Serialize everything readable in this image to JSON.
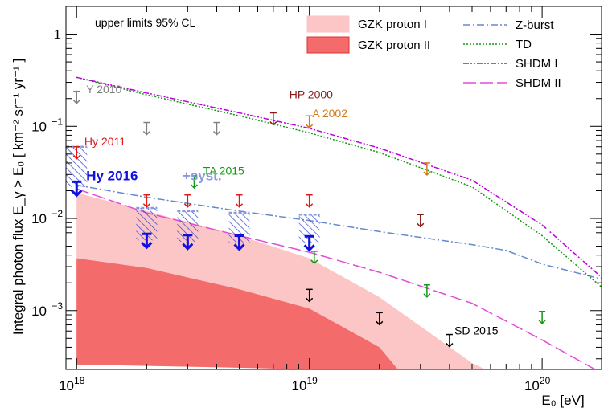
{
  "chart_data": {
    "type": "line",
    "title": "",
    "xlabel": "E₀ [eV]",
    "ylabel": "Integral photon flux E_γ > E₀ [ km⁻² sr⁻¹ yr⁻¹ ]",
    "x_scale": "log",
    "y_scale": "log",
    "xlim": [
      9e+17,
      1.8e+20
    ],
    "ylim": [
      0.00023,
      2.0
    ],
    "grid": false,
    "annotation": "upper limits 95% CL",
    "x_ticks": [
      {
        "value": 1e+18,
        "base": "10",
        "exp": "18"
      },
      {
        "value": 1e+19,
        "base": "10",
        "exp": "19"
      },
      {
        "value": 1e+20,
        "base": "10",
        "exp": "20"
      }
    ],
    "y_ticks": [
      {
        "value": 1,
        "label": "1"
      },
      {
        "value": 0.1,
        "base": "10",
        "exp": "−1"
      },
      {
        "value": 0.01,
        "base": "10",
        "exp": "−2"
      },
      {
        "value": 0.001,
        "base": "10",
        "exp": "−3"
      }
    ],
    "bands": [
      {
        "name": "GZK proton I",
        "color": "#fcc6c6",
        "upper": [
          [
            1e+18,
            0.019
          ],
          [
            2e+18,
            0.012
          ],
          [
            5e+18,
            0.0065
          ],
          [
            1e+19,
            0.0037
          ],
          [
            2e+19,
            0.0014
          ],
          [
            5e+19,
            0.00027
          ],
          [
            5.7e+19,
            0.00023
          ]
        ],
        "lower": [
          [
            1e+18,
            0.00026
          ],
          [
            5e+18,
            0.00024
          ],
          [
            1e+19,
            0.00023
          ]
        ]
      },
      {
        "name": "GZK proton II",
        "color": "#f36b6b",
        "upper": [
          [
            1e+18,
            0.0037
          ],
          [
            2e+18,
            0.0029
          ],
          [
            5e+18,
            0.0017
          ],
          [
            1e+19,
            0.00105
          ],
          [
            2e+19,
            0.0004
          ],
          [
            2.4e+19,
            0.00023
          ]
        ],
        "lower": [
          [
            1e+18,
            0.00026
          ],
          [
            5e+18,
            0.00024
          ],
          [
            1e+19,
            0.00023
          ]
        ]
      }
    ],
    "series": [
      {
        "name": "Z-burst",
        "color": "#6688cc",
        "dash": "9 3 2 3",
        "points": [
          [
            1e+18,
            0.023
          ],
          [
            2e+18,
            0.017
          ],
          [
            5e+18,
            0.012
          ],
          [
            1e+19,
            0.0095
          ],
          [
            2e+19,
            0.0072
          ],
          [
            5e+19,
            0.0052
          ],
          [
            7e+19,
            0.0045
          ],
          [
            1e+20,
            0.0032
          ],
          [
            1.8e+20,
            0.0022
          ]
        ]
      },
      {
        "name": "TD",
        "color": "#119911",
        "dash": "2 2",
        "points": [
          [
            1e+18,
            0.34
          ],
          [
            2e+18,
            0.22
          ],
          [
            5e+18,
            0.13
          ],
          [
            1e+19,
            0.085
          ],
          [
            2e+19,
            0.052
          ],
          [
            5e+19,
            0.022
          ],
          [
            1e+20,
            0.0065
          ],
          [
            1.8e+20,
            0.0018
          ]
        ]
      },
      {
        "name": "SHDM I",
        "color": "#bb00dd",
        "dash": "7 2 2 2 2 2",
        "points": [
          [
            1e+18,
            0.34
          ],
          [
            2e+18,
            0.23
          ],
          [
            5e+18,
            0.14
          ],
          [
            1e+19,
            0.095
          ],
          [
            2e+19,
            0.058
          ],
          [
            5e+19,
            0.026
          ],
          [
            1e+20,
            0.0085
          ],
          [
            1.8e+20,
            0.0023
          ]
        ]
      },
      {
        "name": "SHDM II",
        "color": "#e24bd8",
        "dash": "16 5",
        "points": [
          [
            1e+18,
            0.021
          ],
          [
            2e+18,
            0.0115
          ],
          [
            5e+18,
            0.0065
          ],
          [
            1e+19,
            0.0043
          ],
          [
            2e+19,
            0.0026
          ],
          [
            5e+19,
            0.0012
          ],
          [
            1e+20,
            0.00048
          ],
          [
            1.8e+20,
            0.00021
          ]
        ]
      }
    ],
    "upper_limits": [
      {
        "experiment": "Y 2010",
        "color": "#808080",
        "points": [
          [
            1e+18,
            0.24
          ],
          [
            2e+18,
            0.11
          ],
          [
            4e+18,
            0.11
          ]
        ]
      },
      {
        "experiment": "Hy 2011",
        "color": "#e01818",
        "points": [
          [
            1e+18,
            0.06
          ],
          [
            2e+18,
            0.018
          ],
          [
            3e+18,
            0.018
          ],
          [
            5e+18,
            0.018
          ],
          [
            1e+19,
            0.018
          ]
        ]
      },
      {
        "experiment": "HP 2000",
        "color": "#8a1a1a",
        "points": [
          [
            7e+18,
            0.14
          ],
          [
            3e+19,
            0.011
          ]
        ]
      },
      {
        "experiment": "A 2002",
        "color": "#d47a1a",
        "points": [
          [
            1e+19,
            0.13
          ],
          [
            3.2e+19,
            0.04
          ]
        ]
      },
      {
        "experiment": "TA 2015",
        "color": "#119911",
        "points": [
          [
            3.2e+18,
            0.029
          ],
          [
            1.05e+19,
            0.0044
          ],
          [
            3.2e+19,
            0.0019
          ],
          [
            1e+20,
            0.00098
          ]
        ]
      },
      {
        "experiment": "SD 2015",
        "color": "#000000",
        "points": [
          [
            1e+19,
            0.0017
          ],
          [
            2e+19,
            0.00095
          ],
          [
            4e+19,
            0.00055
          ]
        ]
      },
      {
        "experiment": "Hy 2016",
        "color": "#1010e0",
        "points": [
          [
            1e+18,
            0.025
          ],
          [
            2e+18,
            0.0068
          ],
          [
            3e+18,
            0.0066
          ],
          [
            5e+18,
            0.0065
          ],
          [
            1e+19,
            0.0064
          ]
        ]
      }
    ],
    "syst_boxes": {
      "name": "+syst.",
      "color": "#3344cc",
      "boxes": [
        [
          1e+18,
          0.022,
          0.06
        ],
        [
          2e+18,
          0.0058,
          0.013
        ],
        [
          3e+18,
          0.0056,
          0.012
        ],
        [
          5e+18,
          0.0055,
          0.0115
        ],
        [
          1e+19,
          0.0054,
          0.011
        ]
      ]
    },
    "plot_labels": [
      {
        "text": "Y 2010",
        "color": "#808080",
        "x": 1.1e+18,
        "y": 0.23,
        "bold": false
      },
      {
        "text": "Hy 2011",
        "color": "#e01818",
        "x": 1.08e+18,
        "y": 0.062,
        "bold": false
      },
      {
        "text": "HP 2000",
        "color": "#8a1a1a",
        "x": 8.2e+18,
        "y": 0.2,
        "bold": false
      },
      {
        "text": "A 2002",
        "color": "#d47a1a",
        "x": 1.03e+19,
        "y": 0.125,
        "bold": false
      },
      {
        "text": "TA 2015",
        "color": "#119911",
        "x": 3.5e+18,
        "y": 0.03,
        "bold": false
      },
      {
        "text": "SD 2015",
        "color": "#000000",
        "x": 4.2e+19,
        "y": 0.00055,
        "bold": false
      },
      {
        "text": "Hy 2016",
        "color": "#1010e0",
        "x": 1.1e+18,
        "y": 0.026,
        "bold": true
      },
      {
        "text": "+syst.",
        "color": "#8899dd",
        "x": 2.85e+18,
        "y": 0.026,
        "bold": true
      }
    ],
    "legend": {
      "position": "top-right",
      "fills": [
        {
          "name": "GZK proton I",
          "color": "#fcc6c6",
          "border": "#fcc6c6"
        },
        {
          "name": "GZK proton II",
          "color": "#f36b6b",
          "border": "#e03030"
        }
      ],
      "lines": [
        {
          "name": "Z-burst",
          "color": "#6688cc",
          "dash": "9 3 2 3"
        },
        {
          "name": "TD",
          "color": "#119911",
          "dash": "2 2"
        },
        {
          "name": "SHDM I",
          "color": "#bb00dd",
          "dash": "7 2 2 2 2 2"
        },
        {
          "name": "SHDM II",
          "color": "#e24bd8",
          "dash": "16 5"
        }
      ]
    }
  }
}
